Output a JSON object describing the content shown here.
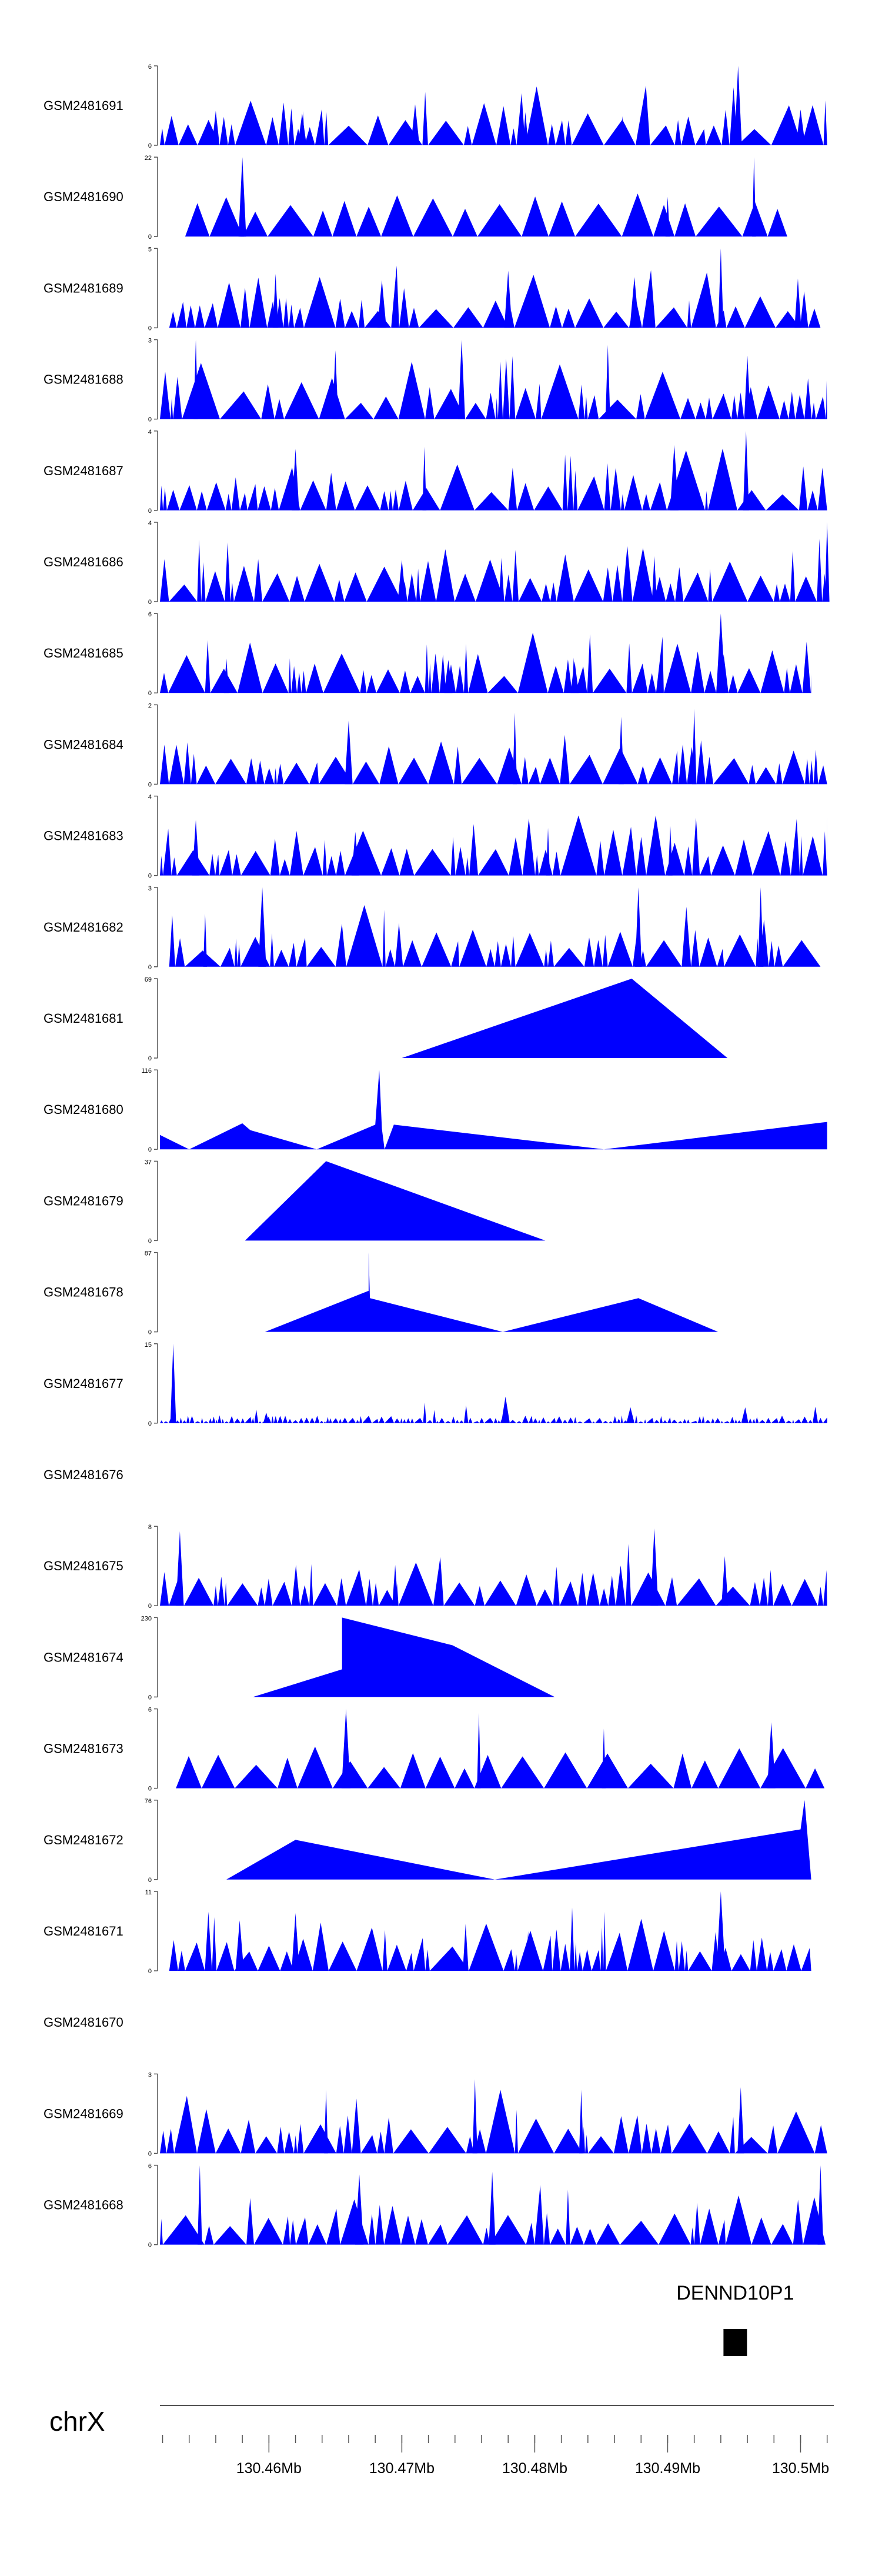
{
  "chart_data": {
    "type": "area",
    "chromosome": "chrX",
    "x_unit": "Mb",
    "xlim": [
      130.4518,
      130.5025
    ],
    "x_ticks": [
      {
        "value": 130.46,
        "label": "130.46Mb"
      },
      {
        "value": 130.47,
        "label": "130.47Mb"
      },
      {
        "value": 130.48,
        "label": "130.48Mb"
      },
      {
        "value": 130.49,
        "label": "130.49Mb"
      },
      {
        "value": 130.5,
        "label": "130.5Mb"
      }
    ],
    "gene": {
      "name": "DENND10P1",
      "start": 130.4942,
      "end": 130.4958
    },
    "tracks": [
      {
        "name": "GSM2481691",
        "ymax": "6",
        "style": "dense",
        "seed": 11,
        "span": [
          130.4518,
          130.502
        ],
        "peaks": [
          [
            130.456,
            2.6
          ],
          [
            130.4625,
            2.4
          ],
          [
            130.471,
            3.1
          ],
          [
            130.4793,
            2.5
          ],
          [
            130.4866,
            2.2
          ],
          [
            130.4953,
            6
          ],
          [
            130.5,
            2.7
          ]
        ]
      },
      {
        "name": "GSM2481690",
        "ymax": "22",
        "style": "coarse",
        "seed": 23,
        "span": [
          130.4537,
          130.499
        ],
        "peaks": [
          [
            130.458,
            10
          ],
          [
            130.458,
            22
          ],
          [
            130.49,
            11
          ],
          [
            130.4965,
            22
          ]
        ]
      },
      {
        "name": "GSM2481689",
        "ymax": "5",
        "style": "dense",
        "seed": 37,
        "span": [
          130.4525,
          130.5015
        ],
        "peaks": [
          [
            130.4605,
            3.4
          ],
          [
            130.4685,
            3.0
          ],
          [
            130.478,
            3.6
          ],
          [
            130.4875,
            3.2
          ],
          [
            130.494,
            5
          ],
          [
            130.4998,
            3.1
          ]
        ]
      },
      {
        "name": "GSM2481688",
        "ymax": "3",
        "style": "dense",
        "seed": 41,
        "span": [
          130.4518,
          130.502
        ],
        "peaks": [
          [
            130.4545,
            3
          ],
          [
            130.465,
            2.6
          ],
          [
            130.4745,
            3
          ],
          [
            130.4855,
            2.8
          ],
          [
            130.496,
            2.4
          ]
        ]
      },
      {
        "name": "GSM2481687",
        "ymax": "4",
        "style": "dense",
        "seed": 53,
        "span": [
          130.4518,
          130.502
        ],
        "peaks": [
          [
            130.462,
            3.1
          ],
          [
            130.4717,
            3.2
          ],
          [
            130.4905,
            3.3
          ],
          [
            130.4959,
            4
          ]
        ]
      },
      {
        "name": "GSM2481686",
        "ymax": "4",
        "style": "dense",
        "seed": 61,
        "span": [
          130.4518,
          130.502
        ],
        "peaks": [
          [
            130.47,
            2.1
          ],
          [
            130.4775,
            2.2
          ],
          [
            130.489,
            2.3
          ],
          [
            130.502,
            4
          ]
        ]
      },
      {
        "name": "GSM2481685",
        "ymax": "6",
        "style": "dense",
        "seed": 71,
        "span": [
          130.4518,
          130.5008
        ],
        "peaks": [
          [
            130.4568,
            2.6
          ],
          [
            130.4735,
            2.5
          ],
          [
            130.483,
            2.4
          ],
          [
            130.494,
            6
          ]
        ]
      },
      {
        "name": "GSM2481684",
        "ymax": "2",
        "style": "dense",
        "seed": 83,
        "span": [
          130.4518,
          130.502
        ],
        "peaks": [
          [
            130.466,
            1.6
          ],
          [
            130.4785,
            1.8
          ],
          [
            130.4865,
            1.7
          ],
          [
            130.492,
            1.9
          ]
        ]
      },
      {
        "name": "GSM2481683",
        "ymax": "4",
        "style": "dense",
        "seed": 97,
        "span": [
          130.4518,
          130.502
        ],
        "peaks": [
          [
            130.4545,
            2.8
          ],
          [
            130.4665,
            2.2
          ],
          [
            130.481,
            2.4
          ],
          [
            130.4902,
            2.5
          ]
        ]
      },
      {
        "name": "GSM2481682",
        "ymax": "3",
        "style": "dense",
        "seed": 101,
        "span": [
          130.4525,
          130.5015
        ],
        "peaks": [
          [
            130.4595,
            3
          ],
          [
            130.4878,
            3
          ],
          [
            130.497,
            3
          ],
          [
            130.4552,
            2.0
          ]
        ]
      },
      {
        "name": "GSM2481681",
        "ymax": "69",
        "style": "shape",
        "points": [
          [
            130.47,
            0
          ],
          [
            130.4873,
            69
          ],
          [
            130.4945,
            0
          ]
        ]
      },
      {
        "name": "GSM2481680",
        "ymax": "116",
        "style": "shape",
        "points": [
          [
            130.4518,
            0
          ],
          [
            130.4518,
            21
          ],
          [
            130.454,
            0
          ],
          [
            130.458,
            38
          ],
          [
            130.4586,
            28
          ],
          [
            130.4636,
            0
          ],
          [
            130.468,
            36
          ],
          [
            130.4683,
            116
          ],
          [
            130.4685,
            30
          ],
          [
            130.4687,
            0
          ],
          [
            130.4694,
            36
          ],
          [
            130.4852,
            0
          ],
          [
            130.502,
            40
          ],
          [
            130.502,
            0
          ]
        ]
      },
      {
        "name": "GSM2481679",
        "ymax": "37",
        "style": "shape",
        "points": [
          [
            130.4582,
            0
          ],
          [
            130.4643,
            37
          ],
          [
            130.4808,
            0
          ]
        ]
      },
      {
        "name": "GSM2481678",
        "ymax": "87",
        "style": "shape",
        "points": [
          [
            130.4597,
            0
          ],
          [
            130.4675,
            45
          ],
          [
            130.4675,
            87
          ],
          [
            130.4676,
            37
          ],
          [
            130.4776,
            0
          ],
          [
            130.4878,
            37
          ],
          [
            130.4938,
            0
          ]
        ]
      },
      {
        "name": "GSM2481677",
        "ymax": "15",
        "style": "sparse",
        "seed": 113,
        "span": [
          130.4518,
          130.502
        ],
        "peaks": [
          [
            130.4528,
            15
          ],
          [
            130.4778,
            5
          ],
          [
            130.4872,
            3
          ],
          [
            130.4598,
            2
          ]
        ]
      },
      {
        "name": "GSM2481676",
        "ymax": "",
        "style": "empty"
      },
      {
        "name": "GSM2481675",
        "ymax": "8",
        "style": "dense",
        "seed": 127,
        "span": [
          130.4518,
          130.502
        ],
        "peaks": [
          [
            130.4533,
            7.5
          ],
          [
            130.489,
            7.8
          ],
          [
            130.4943,
            5.0
          ],
          [
            130.4695,
            4.1
          ]
        ]
      },
      {
        "name": "GSM2481674",
        "ymax": "230",
        "style": "shape",
        "points": [
          [
            130.4588,
            0
          ],
          [
            130.4655,
            80
          ],
          [
            130.4655,
            230
          ],
          [
            130.4738,
            150
          ],
          [
            130.4815,
            0
          ]
        ]
      },
      {
        "name": "GSM2481673",
        "ymax": "6",
        "style": "coarse",
        "seed": 131,
        "span": [
          130.453,
          130.5018
        ],
        "peaks": [
          [
            130.4658,
            6
          ],
          [
            130.4758,
            5.7
          ],
          [
            130.4852,
            4.5
          ],
          [
            130.4978,
            5.0
          ]
        ]
      },
      {
        "name": "GSM2481672",
        "ymax": "76",
        "style": "shape",
        "points": [
          [
            130.4568,
            0
          ],
          [
            130.462,
            38
          ],
          [
            130.477,
            0
          ],
          [
            130.5,
            48
          ],
          [
            130.5003,
            76
          ],
          [
            130.5008,
            0
          ]
        ]
      },
      {
        "name": "GSM2481671",
        "ymax": "11",
        "style": "dense",
        "seed": 149,
        "span": [
          130.4525,
          130.5008
        ],
        "peaks": [
          [
            130.4578,
            7
          ],
          [
            130.462,
            8
          ],
          [
            130.4748,
            6.5
          ],
          [
            130.4795,
            5.5
          ],
          [
            130.494,
            11
          ]
        ]
      },
      {
        "name": "GSM2481670",
        "ymax": "",
        "style": "empty"
      },
      {
        "name": "GSM2481669",
        "ymax": "3",
        "style": "dense",
        "seed": 157,
        "span": [
          130.4518,
          130.502
        ],
        "peaks": [
          [
            130.4643,
            2.4
          ],
          [
            130.4755,
            2.8
          ],
          [
            130.4835,
            2.4
          ],
          [
            130.4955,
            2.5
          ]
        ]
      },
      {
        "name": "GSM2481668",
        "ymax": "6",
        "style": "dense",
        "seed": 163,
        "span": [
          130.4518,
          130.502
        ],
        "peaks": [
          [
            130.4548,
            6
          ],
          [
            130.4668,
            5.3
          ],
          [
            130.4768,
            5.5
          ],
          [
            130.5015,
            6
          ]
        ]
      }
    ]
  },
  "colors": {
    "signal": "#0000ff",
    "gene": "#000000",
    "axis": "#555555",
    "label": "#000000"
  }
}
